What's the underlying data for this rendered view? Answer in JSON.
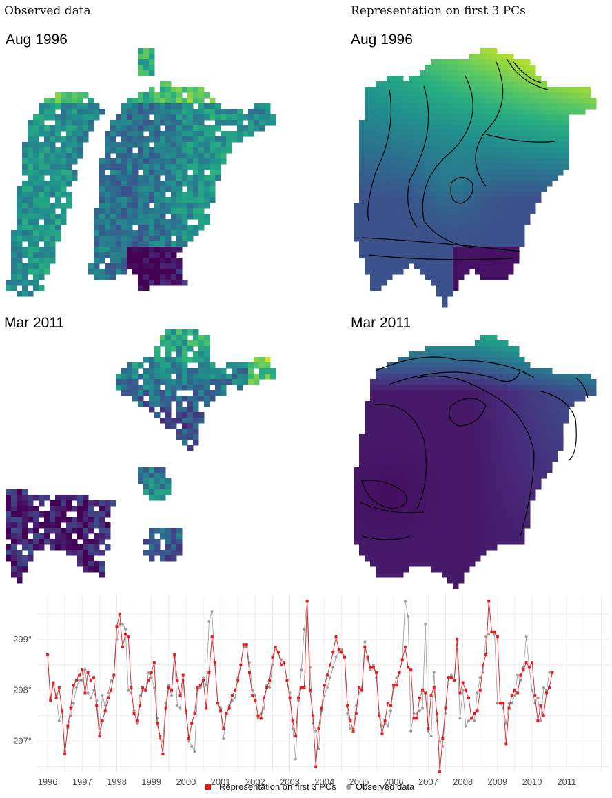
{
  "panels": {
    "left_title": "Observed data",
    "right_title": "Representation on first 3 PCs",
    "top_left_label": "Aug 1996",
    "top_right_label": "Aug 1996",
    "bottom_left_label": "Mar 2011",
    "bottom_right_label": "Mar 2011"
  },
  "colors": {
    "viridis_low": "#440154",
    "viridis_mid": "#21908c",
    "viridis_high": "#dde318",
    "pc_series": "#e41a1c",
    "observed_series": "#9a9a9a",
    "grid": "#ececec",
    "contour": "#000000"
  },
  "chart_data": {
    "type": "line",
    "x_ticks": [
      "1996",
      "1997",
      "1998",
      "1999",
      "2000",
      "2001",
      "2002",
      "2003",
      "2004",
      "2005",
      "2006",
      "2007",
      "2008",
      "2009",
      "2010",
      "2011"
    ],
    "y_ticks": [
      "297°",
      "298°",
      "299°"
    ],
    "ylim": [
      296.4,
      299.85
    ],
    "xlim": [
      1995.7,
      2012.25
    ],
    "legend_position": "bottom",
    "grid": true,
    "series": [
      {
        "name": "Representation on first 3 PCs",
        "marker": "square",
        "values": [
          298.7,
          297.8,
          298.15,
          297.85,
          298.05,
          297.6,
          296.75,
          297.3,
          297.65,
          298.1,
          298.2,
          298.3,
          298.4,
          297.95,
          298.35,
          298.2,
          298.25,
          297.7,
          297.1,
          297.4,
          297.6,
          297.85,
          298.0,
          298.3,
          299.25,
          299.5,
          298.85,
          299.1,
          299.05,
          298.05,
          297.55,
          297.4,
          297.7,
          298.05,
          298.0,
          298.2,
          298.35,
          298.55,
          297.35,
          297.1,
          296.75,
          297.65,
          298.05,
          298.0,
          298.7,
          298.2,
          297.9,
          298.3,
          297.6,
          297.05,
          297.35,
          297.55,
          298.05,
          298.1,
          298.2,
          297.65,
          298.35,
          299.05,
          298.55,
          297.75,
          297.6,
          297.25,
          297.55,
          297.65,
          297.9,
          298.0,
          298.2,
          298.5,
          298.9,
          298.9,
          298.35,
          297.9,
          297.8,
          297.5,
          297.45,
          297.85,
          298.05,
          298.2,
          298.65,
          298.85,
          298.75,
          298.5,
          298.55,
          298.2,
          297.85,
          297.4,
          297.1,
          297.85,
          298.05,
          298.05,
          299.75,
          298.0,
          297.5,
          296.5,
          297.25,
          297.65,
          298.1,
          298.3,
          298.5,
          298.75,
          299.05,
          298.8,
          298.75,
          298.65,
          297.7,
          297.4,
          297.2,
          297.55,
          298.05,
          298.0,
          298.85,
          298.65,
          298.45,
          298.45,
          298.35,
          297.5,
          297.15,
          297.4,
          297.75,
          297.7,
          298.1,
          298.1,
          298.35,
          298.6,
          298.85,
          298.45,
          298.4,
          297.45,
          297.45,
          297.85,
          298.0,
          297.95,
          297.25,
          297.9,
          298.05,
          297.55,
          296.4,
          297.05,
          297.65,
          298.25,
          298.25,
          298.2,
          299.0,
          297.95,
          298.15,
          298.0,
          297.85,
          297.45,
          297.55,
          297.6,
          298.0,
          298.5,
          298.7,
          299.75,
          299.15,
          299.15,
          299.05,
          297.75,
          297.75,
          296.95,
          297.65,
          297.9,
          298.0,
          297.95,
          298.3,
          298.4,
          298.55,
          298.45,
          298.55,
          297.9,
          297.4,
          297.7,
          297.5,
          297.95,
          298.05,
          298.35
        ]
      },
      {
        "name": "Observed data",
        "marker": "circle",
        "values": [
          298.7,
          297.85,
          298.1,
          297.9,
          297.4,
          297.6,
          296.8,
          297.25,
          297.5,
          297.75,
          298.05,
          298.2,
          298.2,
          298.4,
          297.95,
          297.85,
          298.0,
          297.8,
          297.25,
          297.9,
          297.7,
          297.95,
          298.2,
          298.3,
          299.0,
          299.3,
          299.3,
          299.2,
          298.0,
          297.95,
          297.6,
          297.35,
          297.9,
          298.0,
          298.0,
          298.35,
          298.25,
          298.05,
          297.45,
          297.05,
          297.0,
          297.75,
          298.1,
          297.9,
          298.65,
          297.7,
          297.65,
          298.2,
          297.55,
          297.0,
          296.9,
          296.8,
          298.0,
          298.05,
          298.25,
          298.1,
          299.35,
          299.55,
          298.5,
          297.75,
          297.65,
          297.05,
          297.55,
          297.7,
          297.8,
          297.85,
          298.25,
          298.5,
          298.85,
          298.85,
          298.55,
          298.0,
          297.9,
          297.45,
          297.55,
          297.65,
          298.1,
          298.05,
          298.5,
          298.85,
          298.75,
          298.6,
          298.55,
          298.2,
          297.95,
          297.25,
          296.65,
          297.8,
          298.4,
          299.2,
          299.75,
          298.45,
          297.35,
          297.2,
          296.85,
          297.6,
          297.9,
          298.05,
          298.25,
          298.45,
          298.65,
          298.75,
          298.8,
          298.65,
          297.55,
          297.25,
          297.25,
          297.7,
          297.95,
          298.05,
          298.95,
          298.6,
          298.4,
          298.5,
          298.25,
          297.55,
          297.3,
          297.35,
          297.3,
          297.6,
          298.05,
          298.25,
          298.35,
          298.6,
          299.75,
          299.45,
          297.2,
          297.55,
          297.55,
          297.6,
          297.65,
          299.3,
          297.2,
          297.1,
          298.35,
          297.4,
          297.0,
          296.9,
          297.55,
          298.25,
          298.3,
          298.2,
          298.8,
          297.45,
          298.0,
          297.3,
          297.4,
          297.45,
          297.4,
          297.95,
          298.25,
          298.35,
          299.05,
          299.1,
          299.15,
          299.1,
          297.75,
          297.75,
          297.65,
          297.35,
          297.75,
          297.75,
          297.9,
          298.3,
          298.2,
          298.45,
          299.05,
          298.45,
          298.0,
          297.75,
          297.85,
          297.4,
          298.05,
          298.0,
          298.35
        ]
      }
    ]
  }
}
